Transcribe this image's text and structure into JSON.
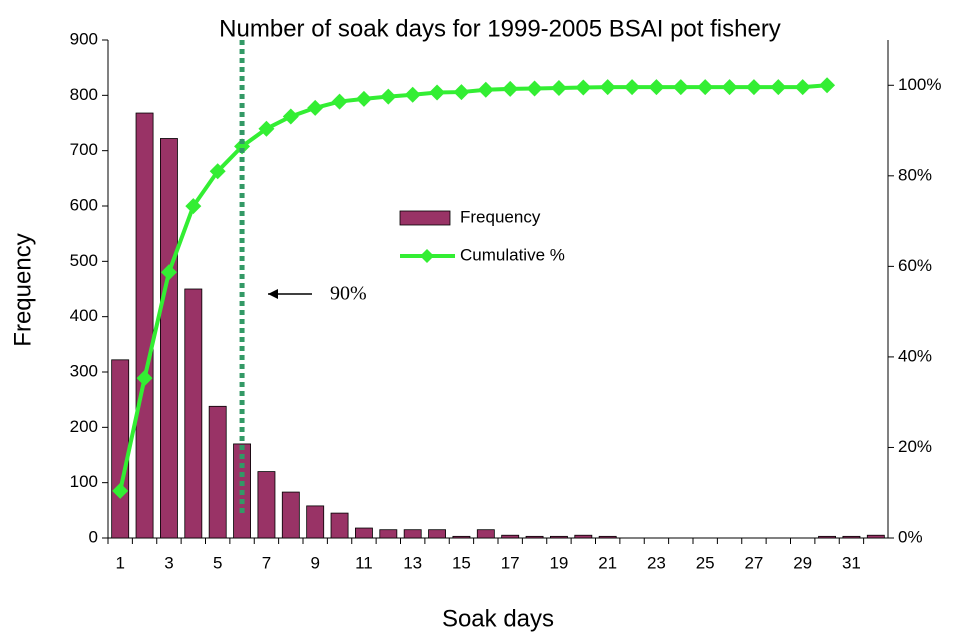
{
  "chart_data": {
    "type": "bar",
    "title": "Number of soak days for 1999-2005 BSAI pot fishery",
    "x_label": "Soak days",
    "y_label": "Frequency",
    "annotation": "90%",
    "categories": [
      1,
      null,
      3,
      null,
      5,
      null,
      7,
      null,
      9,
      null,
      11,
      null,
      13,
      null,
      15,
      null,
      17,
      null,
      19,
      null,
      21,
      null,
      23,
      null,
      25,
      null,
      27,
      null,
      29,
      null,
      31,
      null
    ],
    "series": [
      {
        "name": "Frequency",
        "type": "bar",
        "color": "#993366",
        "values": [
          322,
          768,
          722,
          450,
          238,
          170,
          120,
          83,
          58,
          45,
          18,
          15,
          15,
          15,
          3,
          15,
          5,
          3,
          3,
          5,
          3,
          0,
          0,
          0,
          0,
          0,
          0,
          0,
          0,
          3,
          3,
          5
        ]
      },
      {
        "name": "Cumulative %",
        "type": "line",
        "axis": "y2",
        "color": "#33ee33",
        "values": [
          10.4,
          35.3,
          58.7,
          73.3,
          81.0,
          86.5,
          90.4,
          93.1,
          95.0,
          96.4,
          97.0,
          97.5,
          97.9,
          98.4,
          98.5,
          99.0,
          99.2,
          99.3,
          99.4,
          99.5,
          99.6,
          99.6,
          99.6,
          99.6,
          99.6,
          99.6,
          99.6,
          99.6,
          99.6,
          100,
          null,
          null
        ]
      }
    ],
    "ylim": [
      0,
      900
    ],
    "yticks": [
      0,
      100,
      200,
      300,
      400,
      500,
      600,
      700,
      800,
      900
    ],
    "y2lim": [
      0,
      110
    ],
    "y2ticks": [
      {
        "value": 0,
        "label": "0%"
      },
      {
        "value": 20,
        "label": "20%"
      },
      {
        "value": 40,
        "label": "40%"
      },
      {
        "value": 60,
        "label": "60%"
      },
      {
        "value": 80,
        "label": "80%"
      },
      {
        "value": 100,
        "label": "100%"
      }
    ],
    "legend_position": "center",
    "grid": false
  }
}
